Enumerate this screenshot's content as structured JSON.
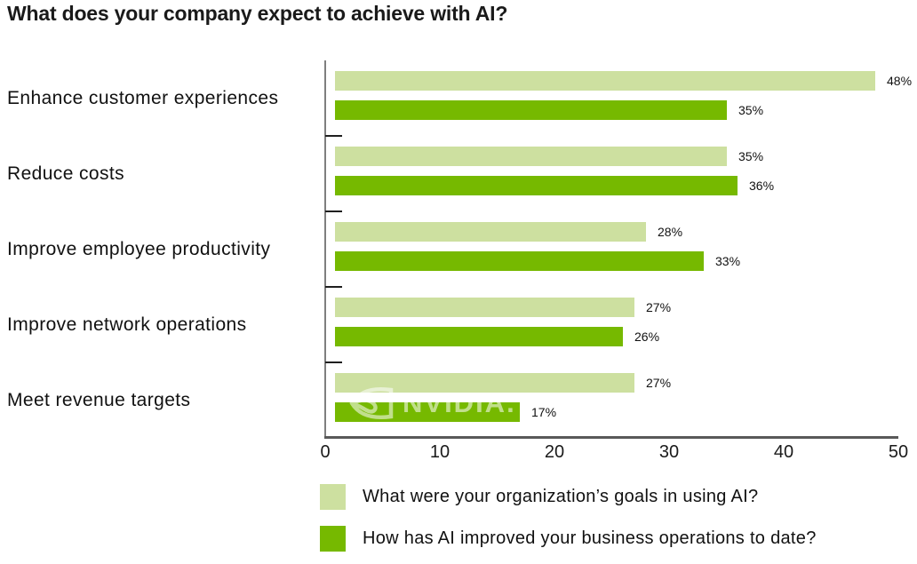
{
  "title": "What does your company expect to achieve with AI?",
  "watermark_text": "NVIDIA.",
  "colors": {
    "series_goals": "#CDE0A0",
    "series_improved": "#76B900",
    "axis_line": "#7F7F7F",
    "bottom_axis_line": "#595959",
    "tick_mark": "#1F1F1F",
    "text": "#111111"
  },
  "chart_data": {
    "type": "bar",
    "orientation": "horizontal",
    "title": "What does your company expect to achieve with AI?",
    "categories": [
      "Enhance customer experiences",
      "Reduce costs",
      "Improve employee productivity",
      "Improve network operations",
      "Meet revenue targets"
    ],
    "series": [
      {
        "name": "What were your organization’s goals in using AI?",
        "color": "#CDE0A0",
        "values": [
          48,
          35,
          28,
          27,
          27
        ]
      },
      {
        "name": "How has AI improved your business operations to date?",
        "color": "#76B900",
        "values": [
          35,
          36,
          33,
          26,
          17
        ]
      }
    ],
    "value_suffix": "%",
    "xlim": [
      0,
      50
    ],
    "x_ticks": [
      0,
      10,
      20,
      30,
      40,
      50
    ],
    "grid": false,
    "legend_position": "bottom-left",
    "data_labels": "outside-end"
  }
}
